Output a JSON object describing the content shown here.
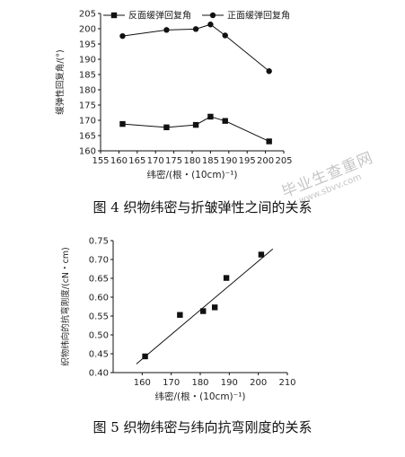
{
  "chart_data": [
    {
      "type": "line",
      "x": [
        161,
        173,
        181,
        185,
        189,
        201
      ],
      "series": [
        {
          "name": "反面缓弹回复角",
          "marker": "square",
          "values": [
            168.8,
            167.7,
            168.5,
            171.2,
            169.8,
            163.1
          ]
        },
        {
          "name": "正面缓弹回复角",
          "marker": "circle",
          "values": [
            197.6,
            199.6,
            199.9,
            201.4,
            197.8,
            186.1
          ]
        }
      ],
      "xlabel": "纬密/(根・(10cm)⁻¹)",
      "ylabel": "缓弹性回复角/(°)",
      "xlim": [
        155,
        205
      ],
      "ylim": [
        160,
        205
      ],
      "xticks": [
        "155",
        "160",
        "165",
        "170",
        "175",
        "180",
        "185",
        "190",
        "195",
        "200",
        "205"
      ],
      "yticks": [
        "160",
        "165",
        "170",
        "175",
        "180",
        "185",
        "190",
        "195",
        "200",
        "205"
      ],
      "legend": "top",
      "grid": false
    },
    {
      "type": "scatter",
      "x": [
        161,
        173,
        181,
        185,
        189,
        201
      ],
      "series": [
        {
          "values": [
            0.443,
            0.553,
            0.563,
            0.573,
            0.651,
            0.713
          ]
        }
      ],
      "trendline": {
        "x": [
          158,
          205
        ],
        "y": [
          0.423,
          0.728
        ]
      },
      "xlabel": "纬密/(根・(10cm)⁻¹)",
      "ylabel": "织物纬向的抗弯刚度/(cN・cm)",
      "xlim": [
        150,
        210
      ],
      "ylim": [
        0.4,
        0.75
      ],
      "xticks": [
        "160",
        "170",
        "180",
        "190",
        "200",
        "210"
      ],
      "yticks": [
        "0.40",
        "0.45",
        "0.50",
        "0.55",
        "0.60",
        "0.65",
        "0.70",
        "0.75"
      ],
      "legend": "none",
      "grid": false
    }
  ],
  "captions": {
    "fig4": "图 4 织物纬密与折皱弹性之间的关系",
    "fig5": "图 5 织物纬密与纬向抗弯刚度的关系"
  },
  "watermark": {
    "line1": "毕业生查重网",
    "line2": "www.sbvv.com"
  }
}
